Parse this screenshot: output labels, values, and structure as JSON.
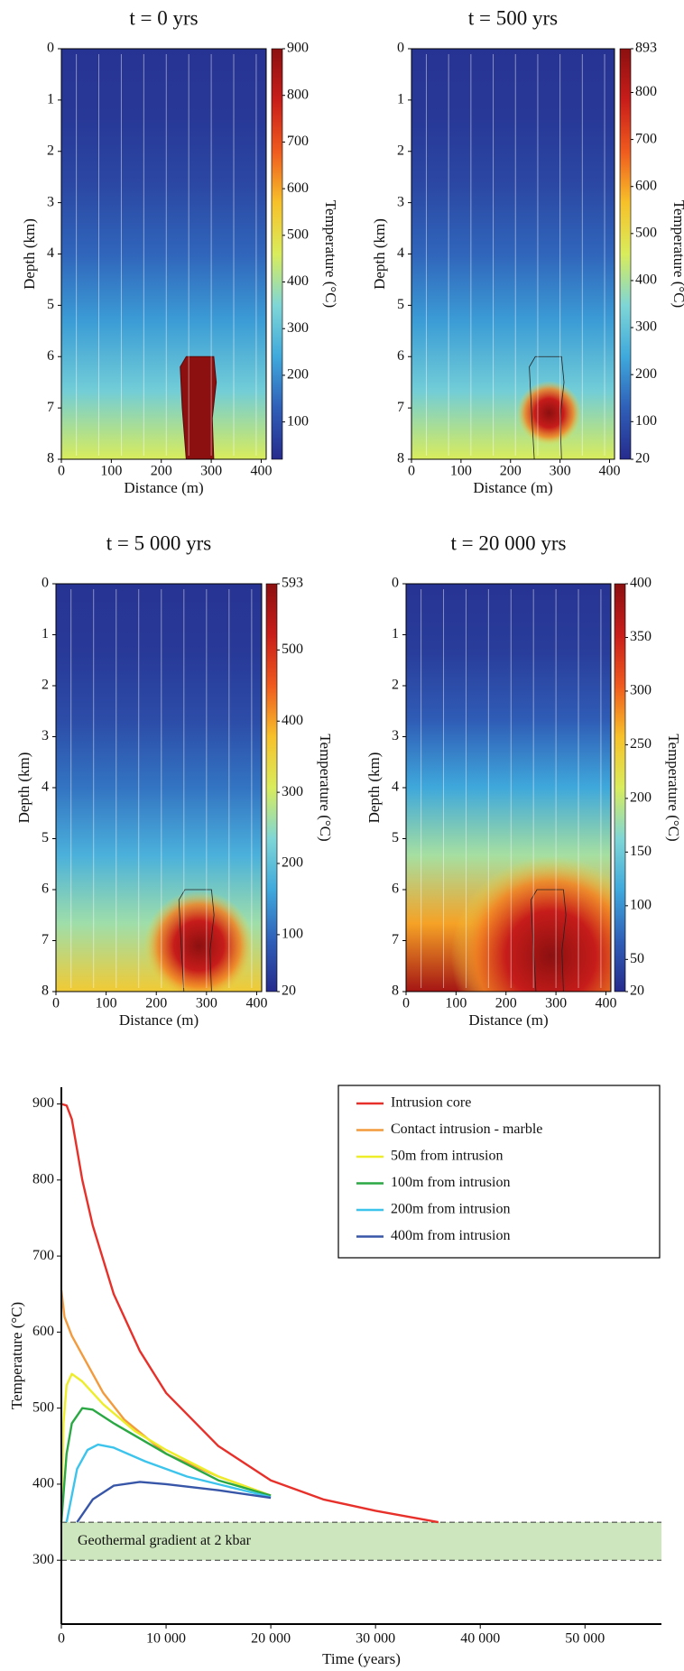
{
  "chart_data": [
    {
      "type": "heatmap",
      "title": "t = 0 yrs",
      "xlabel": "Distance (m)",
      "ylabel": "Depth (km)",
      "colorbar_label": "Temperature (°C)",
      "xlim": [
        0,
        410
      ],
      "xticks": [
        0,
        100,
        200,
        300,
        400
      ],
      "ylim": [
        8,
        0
      ],
      "yticks": [
        0,
        1,
        2,
        3,
        4,
        5,
        6,
        7,
        8
      ],
      "clim": [
        20,
        900
      ],
      "cticks": [
        100,
        200,
        300,
        400,
        500,
        600,
        700,
        800,
        900
      ]
    },
    {
      "type": "heatmap",
      "title": "t = 500 yrs",
      "xlabel": "Distance (m)",
      "ylabel": "Depth (km)",
      "colorbar_label": "Temperature (°C)",
      "xlim": [
        0,
        410
      ],
      "xticks": [
        0,
        100,
        200,
        300,
        400
      ],
      "ylim": [
        8,
        0
      ],
      "yticks": [
        0,
        1,
        2,
        3,
        4,
        5,
        6,
        7,
        8
      ],
      "clim": [
        20,
        893
      ],
      "cticks": [
        20,
        100,
        200,
        300,
        400,
        500,
        600,
        700,
        800,
        893
      ]
    },
    {
      "type": "heatmap",
      "title": "t = 5 000 yrs",
      "xlabel": "Distance (m)",
      "ylabel": "Depth (km)",
      "colorbar_label": "Temperature (°C)",
      "xlim": [
        0,
        410
      ],
      "xticks": [
        0,
        100,
        200,
        300,
        400
      ],
      "ylim": [
        8,
        0
      ],
      "yticks": [
        0,
        1,
        2,
        3,
        4,
        5,
        6,
        7,
        8
      ],
      "clim": [
        20,
        593
      ],
      "cticks": [
        20,
        100,
        200,
        300,
        400,
        500,
        593
      ]
    },
    {
      "type": "heatmap",
      "title": "t = 20 000 yrs",
      "xlabel": "Distance (m)",
      "ylabel": "Depth (km)",
      "colorbar_label": "Temperature (°C)",
      "xlim": [
        0,
        410
      ],
      "xticks": [
        0,
        100,
        200,
        300,
        400
      ],
      "ylim": [
        8,
        0
      ],
      "yticks": [
        0,
        1,
        2,
        3,
        4,
        5,
        6,
        7,
        8
      ],
      "clim": [
        20,
        400
      ],
      "cticks": [
        20,
        50,
        100,
        150,
        200,
        250,
        300,
        350,
        400
      ]
    },
    {
      "type": "line",
      "xlabel": "Time (years)",
      "ylabel": "Temperature (°C)",
      "xlim": [
        0,
        57300
      ],
      "xticks": [
        0,
        {
          "value": 10000,
          "label": "10 000"
        },
        {
          "value": 20000,
          "label": "20 000"
        },
        {
          "value": 30000,
          "label": "30 000"
        },
        {
          "value": 40000,
          "label": "40 000"
        },
        {
          "value": 50000,
          "label": "50 000"
        }
      ],
      "ylim": [
        216,
        922
      ],
      "yticks": [
        300,
        400,
        500,
        600,
        700,
        800,
        900
      ],
      "legend": "top-right",
      "band": {
        "label": "Geothermal gradient at 2 kbar",
        "range": [
          300,
          350
        ],
        "color": "#cde6bd"
      },
      "series": [
        {
          "name": "Intrusion core",
          "color": "#e8302a",
          "x": [
            0,
            500,
            1000,
            2000,
            3000,
            5000,
            7500,
            10000,
            15000,
            20000,
            25000,
            30000,
            36000
          ],
          "values": [
            900,
            898,
            880,
            800,
            740,
            650,
            575,
            520,
            450,
            405,
            380,
            365,
            350
          ]
        },
        {
          "name": "Contact intrusion - marble",
          "color": "#f39a3c",
          "x": [
            0,
            300,
            1000,
            2000,
            4000,
            6000,
            10000,
            15000,
            20000
          ],
          "values": [
            655,
            620,
            595,
            570,
            520,
            485,
            440,
            410,
            385
          ]
        },
        {
          "name": "50m from intrusion",
          "color": "#eded2a",
          "x": [
            0,
            200,
            500,
            1000,
            2000,
            4000,
            7000,
            10000,
            15000,
            20000
          ],
          "values": [
            350,
            480,
            530,
            545,
            535,
            505,
            470,
            445,
            410,
            385
          ]
        },
        {
          "name": "100m from intrusion",
          "color": "#2aa844",
          "x": [
            0,
            500,
            1000,
            2000,
            3000,
            5000,
            10000,
            15000,
            20000
          ],
          "values": [
            350,
            440,
            480,
            500,
            498,
            480,
            440,
            405,
            385
          ]
        },
        {
          "name": "200m from intrusion",
          "color": "#3cc4ec",
          "x": [
            500,
            1500,
            2500,
            3500,
            5000,
            8000,
            12000,
            20000
          ],
          "values": [
            350,
            420,
            445,
            452,
            448,
            430,
            410,
            383
          ]
        },
        {
          "name": "400m from intrusion",
          "color": "#3856a8",
          "x": [
            1500,
            3000,
            5000,
            7500,
            10000,
            15000,
            20000
          ],
          "values": [
            350,
            380,
            398,
            403,
            400,
            392,
            382
          ]
        }
      ]
    }
  ]
}
